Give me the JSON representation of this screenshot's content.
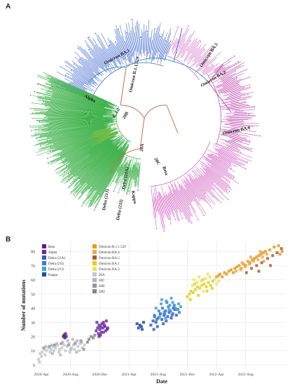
{
  "panels": {
    "a": "A",
    "b": "B"
  },
  "tree": {
    "labels": [
      {
        "text": "Omicron BA.1",
        "color": "#1a1a1a"
      },
      {
        "text": "Omicron B.1.1.529",
        "color": "#1a1a1a"
      },
      {
        "text": "Omicron BA.5",
        "color": "#1a1a1a"
      },
      {
        "text": "Omicron BA.2",
        "color": "#1a1a1a"
      },
      {
        "text": "Omicron BA.4",
        "color": "#1a1a1a"
      },
      {
        "text": "Alpha",
        "color": "#1a1a1a"
      },
      {
        "text": "C.1.2",
        "color": "#1a1a1a"
      },
      {
        "text": "20B",
        "color": "#1a1a1a"
      },
      {
        "text": "20A",
        "color": "#1a1a1a"
      },
      {
        "text": "20C",
        "color": "#1a1a1a"
      },
      {
        "text": "Beta",
        "color": "#1a1a1a"
      },
      {
        "text": "Delta (21A)",
        "color": "#1a1a1a"
      },
      {
        "text": "Kappa",
        "color": "#1a1a1a"
      },
      {
        "text": "Delta (21J)",
        "color": "#1a1a1a"
      },
      {
        "text": "Delta (21I)",
        "color": "#1a1a1a"
      }
    ],
    "clade_colors": {
      "omicron_ba1": "#4a6fd0",
      "omicron_ba2": "#c050b0",
      "omicron_ba5": "#d060c0",
      "delta": "#3cb048",
      "alpha": "#80c040",
      "root": "#c87050",
      "backbone": "#40a0c0"
    }
  },
  "chart_data": {
    "type": "scatter",
    "xlabel": "Date",
    "ylabel": "Number of mutations",
    "xticks": [
      "2020-Apr",
      "2020-Aug",
      "2020-Dec",
      "2021-Apr",
      "2021-Aug",
      "2021-Dec",
      "2022-Apr",
      "2022-Aug"
    ],
    "yticks": [
      0,
      10,
      20,
      30,
      40,
      50,
      60,
      70,
      80
    ],
    "ylim": [
      -3,
      87
    ],
    "legend_position": "top-left",
    "grid": true,
    "series": [
      {
        "name": "Beta",
        "color": "#5a1f8a",
        "points": [
          [
            3.5,
            20
          ],
          [
            3.6,
            21
          ],
          [
            3.7,
            19
          ],
          [
            3.8,
            22
          ],
          [
            3.9,
            20
          ]
        ]
      },
      {
        "name": "Alpha",
        "color": "#6a2aa0",
        "points": [
          [
            8,
            24
          ],
          [
            8.2,
            26
          ],
          [
            8.4,
            28
          ],
          [
            8.5,
            25
          ],
          [
            8.6,
            27
          ],
          [
            8.8,
            29
          ],
          [
            8.9,
            26
          ],
          [
            9.0,
            30
          ],
          [
            9.2,
            27
          ],
          [
            9.4,
            31
          ],
          [
            9.5,
            25
          ],
          [
            8.3,
            22
          ],
          [
            8.7,
            23
          ],
          [
            9.1,
            28
          ],
          [
            9.3,
            24
          ],
          [
            8.1,
            30
          ],
          [
            8.6,
            21
          ],
          [
            9.6,
            26
          ],
          [
            8.4,
            20
          ],
          [
            9.0,
            23
          ]
        ]
      },
      {
        "name": "Delta (21A)",
        "color": "#2f5fc4",
        "points": [
          [
            15.5,
            28
          ],
          [
            15.8,
            31
          ],
          [
            16.0,
            34
          ],
          [
            16.2,
            30
          ],
          [
            16.5,
            33
          ],
          [
            16.8,
            36
          ],
          [
            17.0,
            32
          ],
          [
            17.3,
            35
          ],
          [
            17.5,
            38
          ],
          [
            17.8,
            34
          ],
          [
            18.0,
            37
          ],
          [
            18.3,
            33
          ],
          [
            18.5,
            36
          ],
          [
            18.8,
            39
          ],
          [
            19.0,
            35
          ],
          [
            16.4,
            27
          ],
          [
            17.6,
            31
          ],
          [
            18.6,
            40
          ],
          [
            15.9,
            25
          ],
          [
            17.2,
            29
          ]
        ]
      },
      {
        "name": "Delta (21I)",
        "color": "#3a7fd0",
        "points": [
          [
            16.0,
            35
          ],
          [
            16.6,
            38
          ],
          [
            17.1,
            40
          ],
          [
            17.4,
            36
          ],
          [
            17.9,
            41
          ],
          [
            18.2,
            38
          ],
          [
            18.7,
            42
          ],
          [
            19.2,
            39
          ],
          [
            16.3,
            32
          ],
          [
            17.7,
            44
          ],
          [
            18.4,
            35
          ],
          [
            19.4,
            37
          ]
        ]
      },
      {
        "name": "Delta (21J)",
        "color": "#48a0e0",
        "points": [
          [
            16.2,
            40
          ],
          [
            16.9,
            43
          ],
          [
            17.3,
            37
          ],
          [
            17.6,
            45
          ],
          [
            18.1,
            42
          ],
          [
            18.5,
            44
          ],
          [
            18.9,
            40
          ],
          [
            19.3,
            43
          ],
          [
            17.0,
            46
          ],
          [
            18.0,
            39
          ],
          [
            16.7,
            34
          ],
          [
            19.6,
            41
          ],
          [
            17.5,
            33
          ],
          [
            18.3,
            47
          ]
        ]
      },
      {
        "name": "Kappa",
        "color": "#1f4fa0",
        "points": [
          [
            13.8,
            26
          ],
          [
            14.0,
            28
          ],
          [
            14.2,
            27
          ],
          [
            14.5,
            30
          ],
          [
            13.6,
            29
          ],
          [
            14.3,
            25
          ]
        ]
      },
      {
        "name": "Omicron B.1.1.529",
        "color": "#e89a20",
        "points": [
          [
            24.5,
            62
          ],
          [
            24.8,
            63
          ],
          [
            25.0,
            64
          ],
          [
            25.3,
            62
          ],
          [
            25.6,
            65
          ],
          [
            25.9,
            64
          ],
          [
            26.2,
            66
          ],
          [
            26.5,
            67
          ],
          [
            26.8,
            65
          ],
          [
            27.0,
            68
          ],
          [
            27.3,
            69
          ],
          [
            27.6,
            70
          ],
          [
            27.9,
            68
          ],
          [
            28.2,
            71
          ],
          [
            28.5,
            70
          ],
          [
            28.8,
            73
          ],
          [
            29.1,
            72
          ],
          [
            29.4,
            74
          ],
          [
            29.7,
            75
          ],
          [
            30.0,
            76
          ],
          [
            30.3,
            77
          ],
          [
            30.6,
            78
          ],
          [
            30.9,
            79
          ],
          [
            31.2,
            80
          ],
          [
            31.8,
            81
          ],
          [
            32.4,
            83
          ],
          [
            33.0,
            84
          ],
          [
            33.5,
            80
          ],
          [
            33.2,
            78
          ]
        ]
      },
      {
        "name": "Omicron BA.4",
        "color": "#f2a84a",
        "points": [
          [
            27.2,
            66
          ],
          [
            27.8,
            67
          ],
          [
            28.4,
            69
          ],
          [
            29.0,
            71
          ],
          [
            29.6,
            73
          ],
          [
            30.2,
            74
          ],
          [
            30.8,
            76
          ],
          [
            31.4,
            78
          ],
          [
            28.0,
            72
          ],
          [
            29.2,
            76
          ],
          [
            30.5,
            80
          ],
          [
            31.0,
            73
          ]
        ]
      },
      {
        "name": "Omicron BA.5",
        "color": "#b05a30",
        "points": [
          [
            28.6,
            65
          ],
          [
            29.3,
            68
          ],
          [
            30.0,
            70
          ],
          [
            30.7,
            72
          ],
          [
            31.5,
            75
          ],
          [
            32.2,
            77
          ],
          [
            32.8,
            79
          ],
          [
            33.4,
            82
          ],
          [
            31.9,
            70
          ],
          [
            30.3,
            66
          ]
        ]
      },
      {
        "name": "Omicron BA.1",
        "color": "#e0d020",
        "points": [
          [
            20.5,
            48
          ],
          [
            20.8,
            50
          ],
          [
            21.0,
            52
          ],
          [
            21.3,
            51
          ],
          [
            21.6,
            53
          ],
          [
            21.9,
            55
          ],
          [
            22.2,
            54
          ],
          [
            22.5,
            56
          ],
          [
            22.8,
            57
          ],
          [
            23.1,
            55
          ],
          [
            23.4,
            58
          ],
          [
            23.7,
            56
          ],
          [
            24.0,
            59
          ],
          [
            20.9,
            46
          ],
          [
            22.0,
            49
          ],
          [
            23.2,
            52
          ],
          [
            21.5,
            57
          ],
          [
            22.6,
            60
          ],
          [
            23.9,
            54
          ]
        ]
      },
      {
        "name": "Omicron BA.2",
        "color": "#f0e060",
        "points": [
          [
            21.2,
            56
          ],
          [
            21.8,
            58
          ],
          [
            22.4,
            59
          ],
          [
            23.0,
            61
          ],
          [
            23.6,
            62
          ],
          [
            24.2,
            60
          ],
          [
            24.8,
            59
          ],
          [
            22.1,
            62
          ],
          [
            23.3,
            64
          ],
          [
            24.5,
            57
          ],
          [
            21.4,
            60
          ],
          [
            22.7,
            52
          ]
        ]
      },
      {
        "name": "20A",
        "color": "#c8c8c8",
        "points": [
          [
            0.3,
            8
          ],
          [
            0.6,
            9
          ],
          [
            0.9,
            11
          ],
          [
            1.2,
            10
          ],
          [
            1.5,
            12
          ],
          [
            1.8,
            11
          ],
          [
            2.1,
            13
          ],
          [
            2.4,
            12
          ],
          [
            2.7,
            14
          ],
          [
            3.0,
            11
          ],
          [
            0.5,
            6
          ],
          [
            1.0,
            7
          ],
          [
            1.7,
            9
          ],
          [
            2.2,
            10
          ],
          [
            2.9,
            9
          ],
          [
            3.3,
            12
          ],
          [
            3.6,
            14
          ],
          [
            4.0,
            13
          ],
          [
            4.3,
            15
          ],
          [
            4.6,
            12
          ],
          [
            4.9,
            14
          ],
          [
            5.2,
            16
          ],
          [
            5.5,
            13
          ],
          [
            5.8,
            15
          ],
          [
            6.1,
            12
          ],
          [
            3.8,
            10
          ],
          [
            4.4,
            9
          ],
          [
            5.0,
            11
          ],
          [
            5.7,
            10
          ],
          [
            6.4,
            14
          ],
          [
            0.1,
            4
          ],
          [
            0.2,
            2
          ]
        ]
      },
      {
        "name": "20C",
        "color": "#b0b8c0",
        "points": [
          [
            1.1,
            13
          ],
          [
            1.9,
            14
          ],
          [
            2.6,
            15
          ],
          [
            3.4,
            16
          ],
          [
            4.1,
            17
          ],
          [
            4.8,
            18
          ],
          [
            5.4,
            17
          ],
          [
            6.0,
            16
          ],
          [
            2.0,
            8
          ],
          [
            3.1,
            7
          ],
          [
            4.5,
            11
          ],
          [
            5.3,
            9
          ]
        ]
      },
      {
        "name": "20B",
        "color": "#9098a0",
        "points": [
          [
            0.8,
            12
          ],
          [
            1.6,
            13
          ],
          [
            2.3,
            14
          ],
          [
            3.2,
            15
          ],
          [
            4.2,
            14
          ],
          [
            5.1,
            15
          ],
          [
            5.9,
            17
          ],
          [
            6.3,
            11
          ]
        ]
      },
      {
        "name": "20D",
        "color": "#7f8a95",
        "points": [
          [
            7.0,
            18
          ],
          [
            7.3,
            20
          ],
          [
            7.6,
            19
          ],
          [
            6.8,
            16
          ],
          [
            7.8,
            21
          ]
        ]
      }
    ]
  }
}
